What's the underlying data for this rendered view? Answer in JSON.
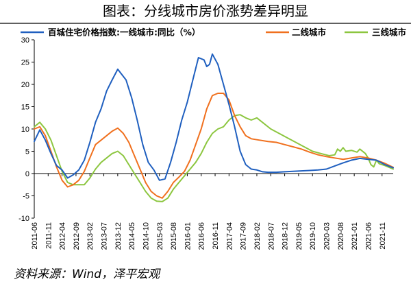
{
  "title": "图表：分线城市房价涨势差异明显",
  "source": "资料来源：Wind，泽平宏观",
  "chart_data": {
    "type": "line",
    "title": "图表：分线城市房价涨势差异明显",
    "xlabel": "",
    "ylabel": "",
    "ylim": [
      -10,
      30
    ],
    "yticks": [
      -10,
      -5,
      0,
      5,
      10,
      15,
      20,
      25,
      30
    ],
    "grid": false,
    "legend_position": "top",
    "x_tick_labels": [
      "2011-06",
      "2011-11",
      "2012-04",
      "2012-09",
      "2013-02",
      "2013-07",
      "2013-12",
      "2014-05",
      "2014-10",
      "2015-03",
      "2015-08",
      "2016-01",
      "2016-06",
      "2016-11",
      "2017-04",
      "2017-09",
      "2018-02",
      "2018-07",
      "2018-12",
      "2019-05",
      "2019-10",
      "2020-03",
      "2020-08",
      "2021-01",
      "2021-06",
      "2021-11"
    ],
    "x_start": "2011-06",
    "x_end": "2022-03",
    "series": [
      {
        "name": "百城住宅价格指数:一线城市:同比（%）",
        "color": "#1f5fbf",
        "points": [
          [
            "2011-06",
            7.2
          ],
          [
            "2011-08",
            9.8
          ],
          [
            "2011-10",
            7.5
          ],
          [
            "2011-12",
            4.5
          ],
          [
            "2012-02",
            1.8
          ],
          [
            "2012-04",
            0.8
          ],
          [
            "2012-06",
            -1.0
          ],
          [
            "2012-08",
            -0.3
          ],
          [
            "2012-10",
            0.8
          ],
          [
            "2012-12",
            3.0
          ],
          [
            "2013-02",
            7.0
          ],
          [
            "2013-04",
            11.5
          ],
          [
            "2013-06",
            14.5
          ],
          [
            "2013-08",
            18.5
          ],
          [
            "2013-10",
            21.0
          ],
          [
            "2013-12",
            23.4
          ],
          [
            "2014-01",
            22.6
          ],
          [
            "2014-03",
            21.0
          ],
          [
            "2014-05",
            17.0
          ],
          [
            "2014-07",
            12.0
          ],
          [
            "2014-09",
            6.5
          ],
          [
            "2014-11",
            2.5
          ],
          [
            "2015-01",
            0.8
          ],
          [
            "2015-03",
            -1.5
          ],
          [
            "2015-05",
            -1.2
          ],
          [
            "2015-07",
            2.5
          ],
          [
            "2015-09",
            7.0
          ],
          [
            "2015-11",
            12.0
          ],
          [
            "2016-01",
            16.0
          ],
          [
            "2016-03",
            21.0
          ],
          [
            "2016-05",
            26.0
          ],
          [
            "2016-07",
            25.5
          ],
          [
            "2016-08",
            24.0
          ],
          [
            "2016-09",
            24.5
          ],
          [
            "2016-10",
            26.8
          ],
          [
            "2016-12",
            24.5
          ],
          [
            "2017-02",
            20.0
          ],
          [
            "2017-04",
            15.5
          ],
          [
            "2017-06",
            10.5
          ],
          [
            "2017-08",
            5.0
          ],
          [
            "2017-10",
            2.0
          ],
          [
            "2017-12",
            1.0
          ],
          [
            "2018-02",
            0.8
          ],
          [
            "2018-04",
            0.4
          ],
          [
            "2018-06",
            0.3
          ],
          [
            "2018-09",
            0.3
          ],
          [
            "2018-12",
            0.4
          ],
          [
            "2019-03",
            0.5
          ],
          [
            "2019-06",
            0.6
          ],
          [
            "2019-09",
            0.7
          ],
          [
            "2019-12",
            0.8
          ],
          [
            "2020-03",
            1.0
          ],
          [
            "2020-06",
            1.7
          ],
          [
            "2020-09",
            2.4
          ],
          [
            "2020-12",
            3.0
          ],
          [
            "2021-03",
            3.4
          ],
          [
            "2021-06",
            3.2
          ],
          [
            "2021-09",
            3.0
          ],
          [
            "2021-12",
            2.0
          ],
          [
            "2022-03",
            1.3
          ]
        ]
      },
      {
        "name": "二线城市",
        "color": "#f0701e",
        "points": [
          [
            "2011-06",
            10.0
          ],
          [
            "2011-08",
            10.5
          ],
          [
            "2011-10",
            8.5
          ],
          [
            "2011-12",
            5.0
          ],
          [
            "2012-02",
            1.5
          ],
          [
            "2012-04",
            -1.5
          ],
          [
            "2012-06",
            -3.0
          ],
          [
            "2012-08",
            -2.5
          ],
          [
            "2012-10",
            -1.5
          ],
          [
            "2012-12",
            0.5
          ],
          [
            "2013-02",
            3.5
          ],
          [
            "2013-04",
            6.5
          ],
          [
            "2013-06",
            7.5
          ],
          [
            "2013-08",
            8.5
          ],
          [
            "2013-10",
            9.5
          ],
          [
            "2013-12",
            10.2
          ],
          [
            "2014-02",
            9.0
          ],
          [
            "2014-04",
            7.0
          ],
          [
            "2014-06",
            4.0
          ],
          [
            "2014-08",
            1.0
          ],
          [
            "2014-10",
            -2.0
          ],
          [
            "2014-12",
            -4.0
          ],
          [
            "2015-02",
            -5.0
          ],
          [
            "2015-04",
            -5.5
          ],
          [
            "2015-06",
            -4.0
          ],
          [
            "2015-08",
            -2.0
          ],
          [
            "2015-10",
            -0.8
          ],
          [
            "2015-12",
            0.5
          ],
          [
            "2016-02",
            3.0
          ],
          [
            "2016-04",
            6.5
          ],
          [
            "2016-06",
            10.0
          ],
          [
            "2016-08",
            14.5
          ],
          [
            "2016-10",
            17.5
          ],
          [
            "2016-12",
            18.0
          ],
          [
            "2017-02",
            18.0
          ],
          [
            "2017-04",
            16.5
          ],
          [
            "2017-06",
            13.0
          ],
          [
            "2017-08",
            10.5
          ],
          [
            "2017-10",
            8.5
          ],
          [
            "2017-12",
            7.8
          ],
          [
            "2018-03",
            7.5
          ],
          [
            "2018-06",
            7.2
          ],
          [
            "2018-09",
            7.0
          ],
          [
            "2018-12",
            6.5
          ],
          [
            "2019-03",
            6.0
          ],
          [
            "2019-06",
            5.5
          ],
          [
            "2019-09",
            4.8
          ],
          [
            "2019-12",
            4.2
          ],
          [
            "2020-03",
            3.8
          ],
          [
            "2020-06",
            3.5
          ],
          [
            "2020-09",
            3.2
          ],
          [
            "2020-12",
            3.5
          ],
          [
            "2021-03",
            3.8
          ],
          [
            "2021-06",
            3.5
          ],
          [
            "2021-09",
            3.0
          ],
          [
            "2021-12",
            2.3
          ],
          [
            "2022-03",
            1.4
          ]
        ]
      },
      {
        "name": "三线城市",
        "color": "#8cc63f",
        "points": [
          [
            "2011-06",
            10.5
          ],
          [
            "2011-08",
            11.5
          ],
          [
            "2011-10",
            10.0
          ],
          [
            "2011-12",
            7.5
          ],
          [
            "2012-02",
            4.0
          ],
          [
            "2012-04",
            0.5
          ],
          [
            "2012-06",
            -2.0
          ],
          [
            "2012-08",
            -2.5
          ],
          [
            "2012-10",
            -2.5
          ],
          [
            "2012-12",
            -2.5
          ],
          [
            "2013-02",
            -1.0
          ],
          [
            "2013-04",
            1.0
          ],
          [
            "2013-06",
            2.5
          ],
          [
            "2013-08",
            3.5
          ],
          [
            "2013-10",
            4.5
          ],
          [
            "2013-12",
            5.0
          ],
          [
            "2014-02",
            4.0
          ],
          [
            "2014-04",
            2.0
          ],
          [
            "2014-06",
            0.0
          ],
          [
            "2014-08",
            -2.0
          ],
          [
            "2014-10",
            -4.0
          ],
          [
            "2014-12",
            -5.5
          ],
          [
            "2015-02",
            -6.2
          ],
          [
            "2015-04",
            -6.3
          ],
          [
            "2015-06",
            -5.5
          ],
          [
            "2015-08",
            -3.5
          ],
          [
            "2015-10",
            -2.0
          ],
          [
            "2015-12",
            -0.5
          ],
          [
            "2016-02",
            1.0
          ],
          [
            "2016-04",
            2.5
          ],
          [
            "2016-06",
            4.5
          ],
          [
            "2016-08",
            7.0
          ],
          [
            "2016-10",
            9.0
          ],
          [
            "2016-12",
            10.0
          ],
          [
            "2017-02",
            10.5
          ],
          [
            "2017-04",
            12.0
          ],
          [
            "2017-06",
            13.0
          ],
          [
            "2017-08",
            13.2
          ],
          [
            "2017-10",
            12.5
          ],
          [
            "2017-12",
            12.0
          ],
          [
            "2018-02",
            12.5
          ],
          [
            "2018-04",
            11.5
          ],
          [
            "2018-07",
            10.0
          ],
          [
            "2018-10",
            9.0
          ],
          [
            "2019-01",
            8.0
          ],
          [
            "2019-04",
            7.0
          ],
          [
            "2019-07",
            6.0
          ],
          [
            "2019-10",
            5.0
          ],
          [
            "2020-01",
            4.5
          ],
          [
            "2020-04",
            4.0
          ],
          [
            "2020-06",
            4.2
          ],
          [
            "2020-07",
            5.5
          ],
          [
            "2020-08",
            5.0
          ],
          [
            "2020-09",
            5.8
          ],
          [
            "2020-10",
            5.0
          ],
          [
            "2020-12",
            5.2
          ],
          [
            "2021-02",
            4.8
          ],
          [
            "2021-03",
            5.5
          ],
          [
            "2021-05",
            4.5
          ],
          [
            "2021-06",
            3.5
          ],
          [
            "2021-07",
            2.0
          ],
          [
            "2021-08",
            1.5
          ],
          [
            "2021-09",
            3.0
          ],
          [
            "2021-10",
            2.2
          ],
          [
            "2021-12",
            1.8
          ],
          [
            "2022-03",
            1.0
          ]
        ]
      }
    ]
  }
}
